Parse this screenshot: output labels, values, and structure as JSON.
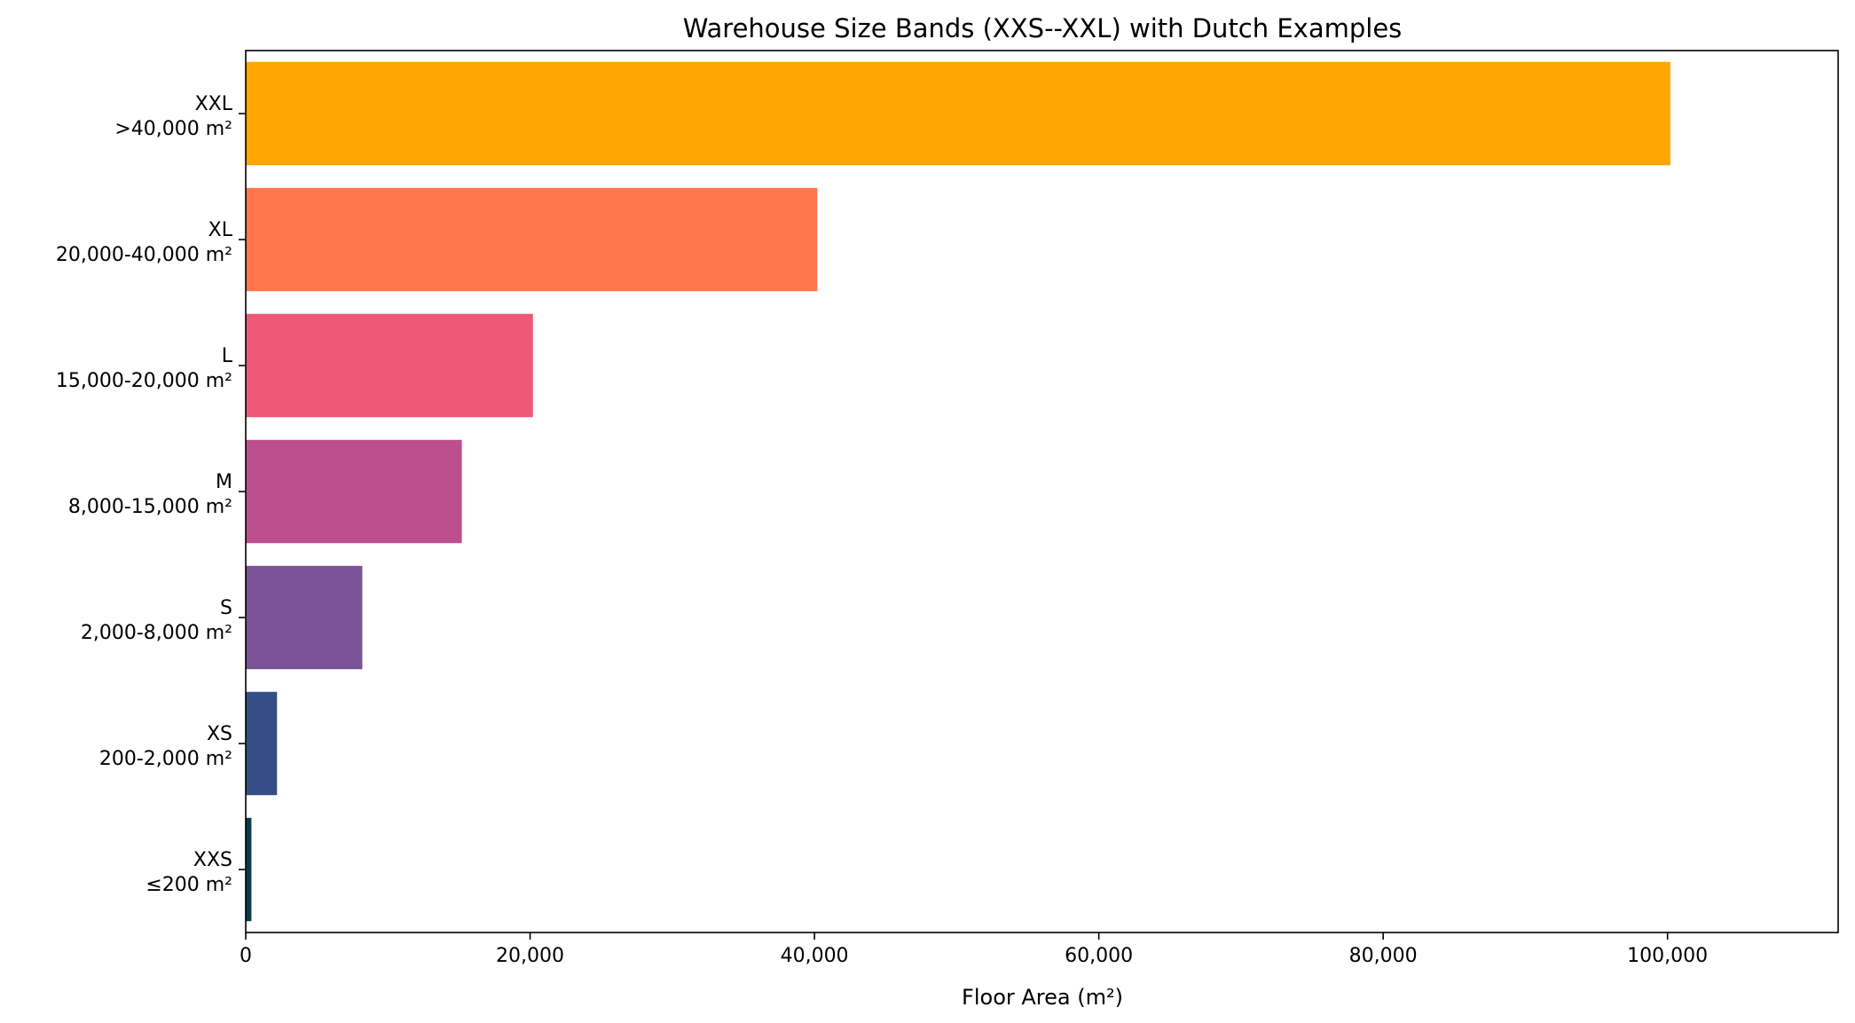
{
  "chart_data": {
    "type": "bar",
    "orientation": "horizontal",
    "title": "Warehouse Size Bands (XXS--XXL) with Dutch Examples",
    "xlabel": "Floor Area (m²)",
    "ylabel": "",
    "xlim": [
      0,
      112000
    ],
    "xticks": [
      0,
      20000,
      40000,
      60000,
      80000,
      100000
    ],
    "xtick_labels": [
      "0",
      "20,000",
      "40,000",
      "60,000",
      "80,000",
      "100,000"
    ],
    "grid": false,
    "categories": [
      {
        "band": "XXS",
        "range": "≤200 m²",
        "value": 400,
        "color": "#0a3d4c"
      },
      {
        "band": "XS",
        "range": "200-2,000 m²",
        "value": 2200,
        "color": "#354f86"
      },
      {
        "band": "S",
        "range": "2,000-8,000 m²",
        "value": 8200,
        "color": "#7a5295"
      },
      {
        "band": "M",
        "range": "8,000-15,000 m²",
        "value": 15200,
        "color": "#bd4f8f"
      },
      {
        "band": "L",
        "range": "15,000-20,000 m²",
        "value": 20200,
        "color": "#ef5877"
      },
      {
        "band": "XL",
        "range": "20,000-40,000 m²",
        "value": 40200,
        "color": "#ff774d"
      },
      {
        "band": "XXL",
        "range": ">40,000 m²",
        "value": 100200,
        "color": "#ffa600"
      }
    ]
  }
}
